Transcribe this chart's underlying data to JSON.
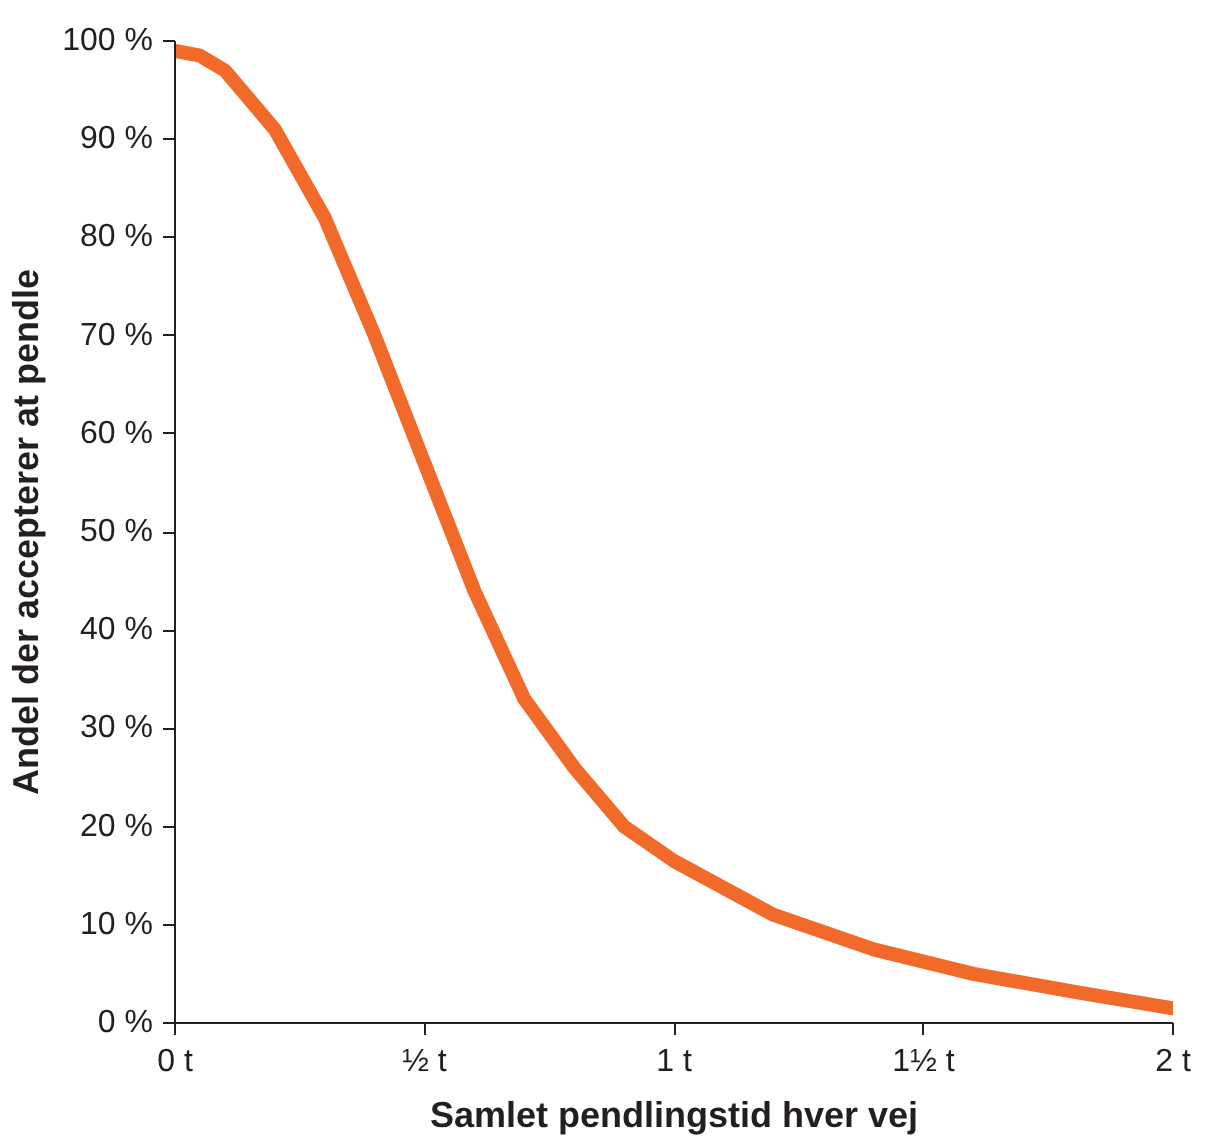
{
  "chart_data": {
    "type": "line",
    "xlabel": "Samlet pendlingstid hver vej",
    "ylabel": "Andel der accepterer at pendle",
    "x": [
      0,
      0.05,
      0.1,
      0.2,
      0.3,
      0.4,
      0.5,
      0.6,
      0.7,
      0.8,
      0.9,
      1.0,
      1.2,
      1.4,
      1.6,
      1.8,
      2.0
    ],
    "series": [
      {
        "color": "#f26a2a",
        "values": [
          99,
          98.5,
          97,
          91,
          82,
          70,
          57,
          44,
          33,
          26,
          20,
          16.5,
          11,
          7.5,
          5,
          3.2,
          1.5
        ]
      }
    ],
    "xlim": [
      0,
      2
    ],
    "ylim": [
      0,
      100
    ],
    "xticks": [
      {
        "value": 0,
        "label": "0 t"
      },
      {
        "value": 0.5,
        "label": "½ t"
      },
      {
        "value": 1,
        "label": "1 t"
      },
      {
        "value": 1.5,
        "label": "1½ t"
      },
      {
        "value": 2,
        "label": "2 t"
      }
    ],
    "yticks": [
      {
        "value": 0,
        "label": "0 %"
      },
      {
        "value": 10,
        "label": "10 %"
      },
      {
        "value": 20,
        "label": "20 %"
      },
      {
        "value": 30,
        "label": "30 %"
      },
      {
        "value": 40,
        "label": "40 %"
      },
      {
        "value": 50,
        "label": "50 %"
      },
      {
        "value": 60,
        "label": "60 %"
      },
      {
        "value": 70,
        "label": "70 %"
      },
      {
        "value": 80,
        "label": "80 %"
      },
      {
        "value": 90,
        "label": "90 %"
      },
      {
        "value": 100,
        "label": "100 %"
      }
    ],
    "line_style": "solid"
  }
}
